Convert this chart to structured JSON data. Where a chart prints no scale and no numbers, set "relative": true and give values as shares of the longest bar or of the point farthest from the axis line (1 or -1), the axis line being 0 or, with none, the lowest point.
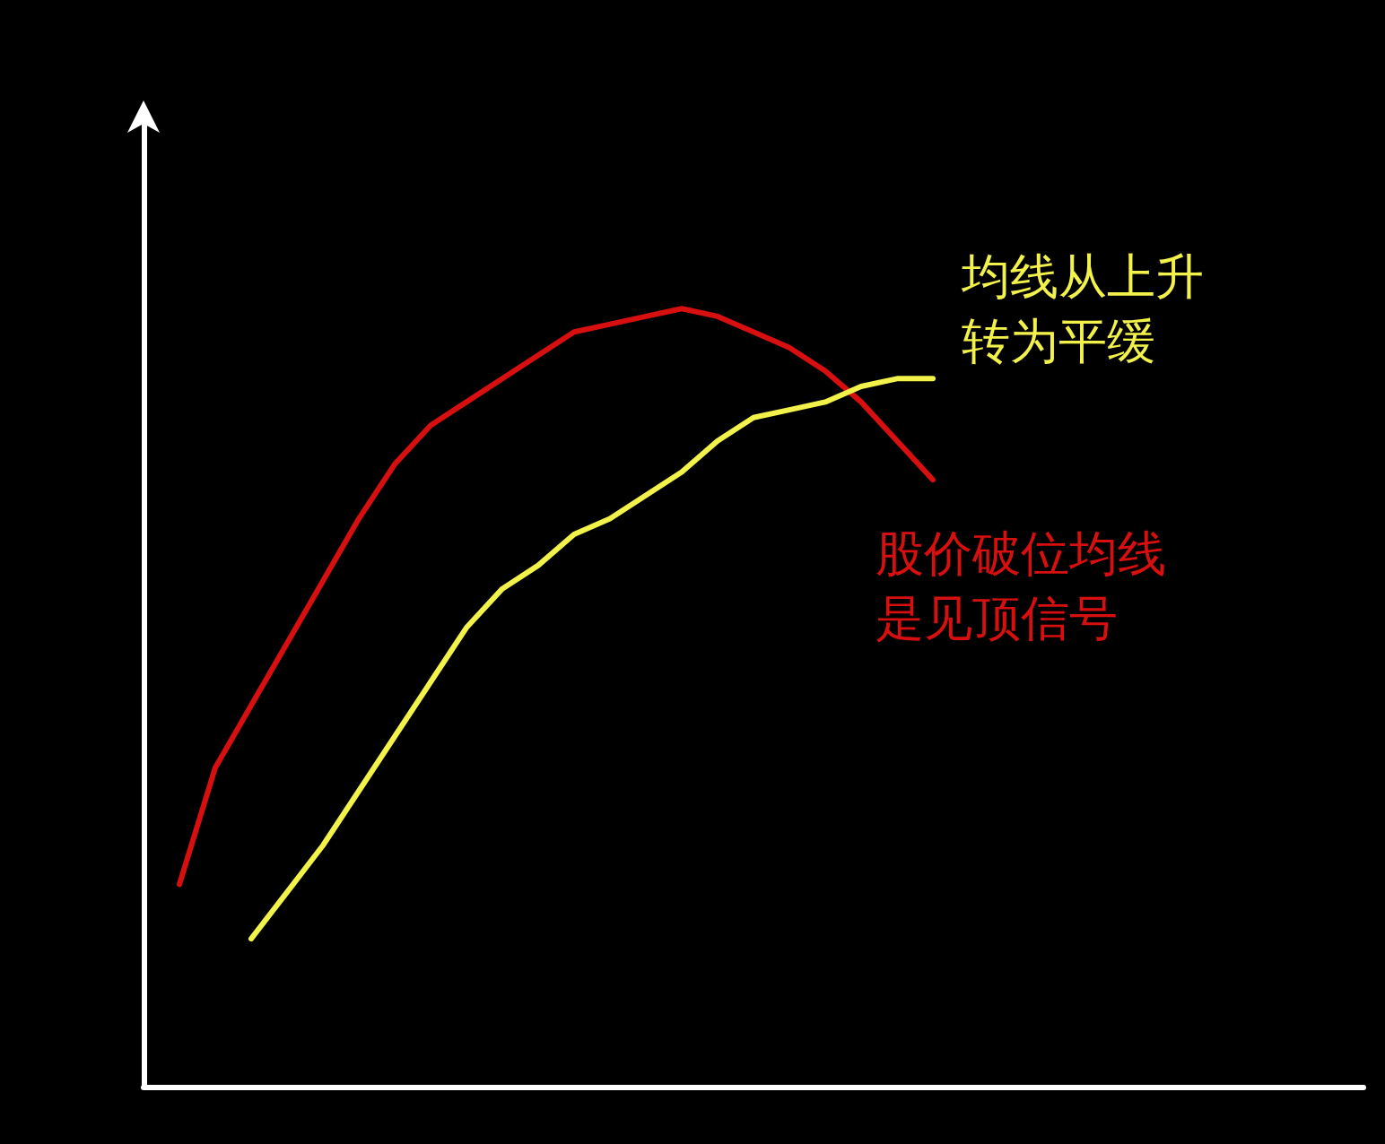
{
  "chart_data": {
    "type": "line",
    "relative": true,
    "marker": "none",
    "categories": [
      null,
      null,
      null,
      null,
      null,
      null,
      null,
      null,
      null,
      null,
      null,
      null,
      null,
      null,
      null,
      null,
      null,
      null,
      null,
      null,
      null,
      null,
      null,
      null,
      null,
      null,
      null,
      null,
      null,
      null,
      null,
      null,
      null,
      null,
      null
    ],
    "series": [
      {
        "name": "股价破位均线是见顶信号",
        "color": "#d80f0f",
        "values": [
          null,
          0.26,
          0.41,
          0.49,
          0.57,
          0.65,
          0.73,
          0.8,
          0.85,
          0.88,
          0.91,
          0.94,
          0.97,
          0.98,
          0.99,
          1,
          0.99,
          0.97,
          0.95,
          0.92,
          0.88,
          0.83,
          0.78,
          null,
          null,
          null,
          null,
          null,
          null,
          null,
          null,
          null,
          null,
          null,
          null
        ]
      },
      {
        "name": "均线从上升转为平缓",
        "color": "#f2f24a",
        "values": [
          null,
          null,
          null,
          0.19,
          0.25,
          0.31,
          0.38,
          0.45,
          0.52,
          0.59,
          0.64,
          0.67,
          0.71,
          0.73,
          0.76,
          0.79,
          0.83,
          0.86,
          0.87,
          0.88,
          0.9,
          0.91,
          0.91,
          null,
          null,
          null,
          null,
          null,
          null,
          null,
          null,
          null,
          null,
          null,
          null
        ]
      }
    ]
  }
}
